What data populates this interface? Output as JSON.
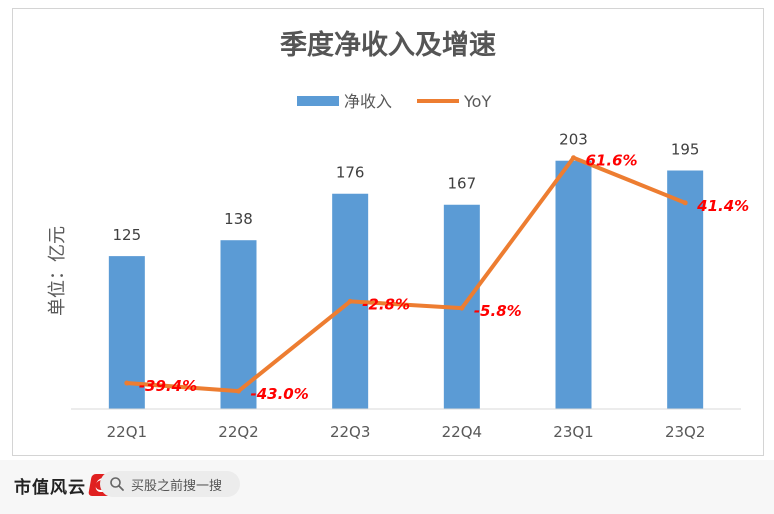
{
  "footer": {
    "brand": "市值风云",
    "search_placeholder": "买股之前搜一搜",
    "icon": "search-icon"
  },
  "chart_data": {
    "type": "bar",
    "title": "季度净收入及增速",
    "ylabel": "单位：亿元",
    "categories": [
      "22Q1",
      "22Q2",
      "22Q3",
      "22Q4",
      "23Q1",
      "23Q2"
    ],
    "series": [
      {
        "name": "净收入",
        "type": "bar",
        "values": [
          125,
          138,
          176,
          167,
          203,
          195
        ],
        "color": "#5b9bd5"
      },
      {
        "name": "YoY",
        "type": "line",
        "values": [
          -39.4,
          -43.0,
          -2.8,
          -5.8,
          61.6,
          41.4
        ],
        "color": "#ed7d31"
      }
    ],
    "bar_labels": [
      "125",
      "138",
      "176",
      "167",
      "203",
      "195"
    ],
    "line_labels": [
      "-39.4%",
      "-43.0%",
      "-2.8%",
      "-5.8%",
      "61.6%",
      "41.4%"
    ],
    "line_label_color": "#ff0000",
    "legend": "top",
    "grid": false,
    "ylim_bar": [
      0,
      260
    ],
    "ylim_line": [
      -60,
      70
    ]
  }
}
